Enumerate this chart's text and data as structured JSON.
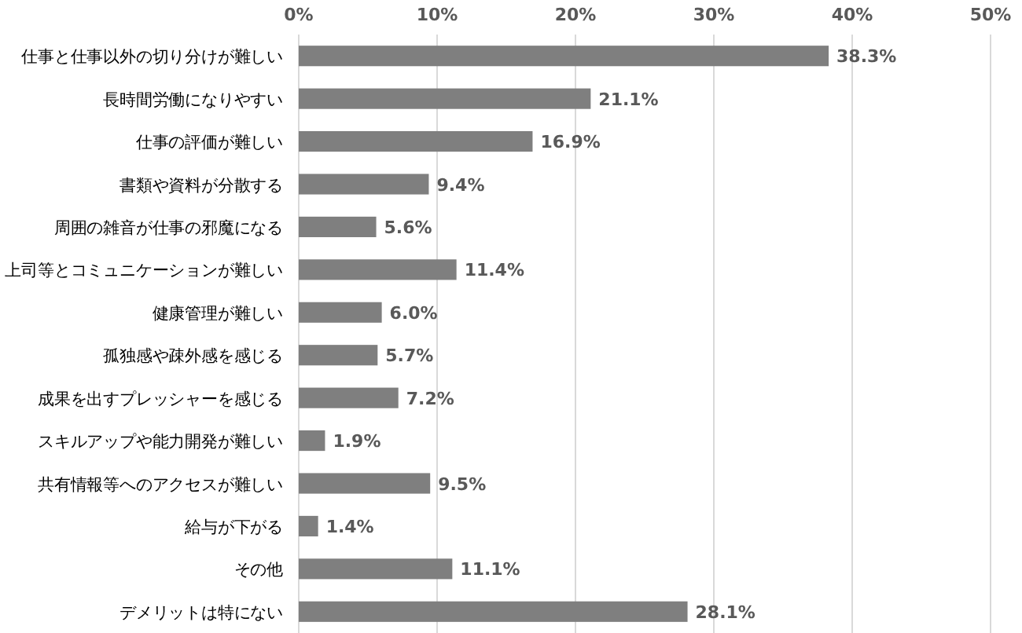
{
  "chart_data": {
    "type": "bar",
    "orientation": "horizontal",
    "categories": [
      "仕事と仕事以外の切り分けが難しい",
      "長時間労働になりやすい",
      "仕事の評価が難しい",
      "書類や資料が分散する",
      "周囲の雑音が仕事の邪魔になる",
      "上司等とコミュニケーションが難しい",
      "健康管理が難しい",
      "孤独感や疎外感を感じる",
      "成果を出すプレッシャーを感じる",
      "スキルアップや能力開発が難しい",
      "共有情報等へのアクセスが難しい",
      "給与が下がる",
      "その他",
      "デメリットは特にない"
    ],
    "values": [
      38.3,
      21.1,
      16.9,
      9.4,
      5.6,
      11.4,
      6.0,
      5.7,
      7.2,
      1.9,
      9.5,
      1.4,
      11.1,
      28.1
    ],
    "value_labels": [
      "38.3%",
      "21.1%",
      "16.9%",
      "9.4%",
      "5.6%",
      "11.4%",
      "6.0%",
      "5.7%",
      "7.2%",
      "1.9%",
      "9.5%",
      "1.4%",
      "11.1%",
      "28.1%"
    ],
    "color": "#7f7f7f",
    "xlim": [
      0,
      50
    ],
    "xticks": [
      {
        "value": 0,
        "label": "0%"
      },
      {
        "value": 10,
        "label": "10%"
      },
      {
        "value": 20,
        "label": "20%"
      },
      {
        "value": 30,
        "label": "30%"
      },
      {
        "value": 40,
        "label": "40%"
      },
      {
        "value": 50,
        "label": "50%"
      }
    ],
    "grid": "x"
  }
}
